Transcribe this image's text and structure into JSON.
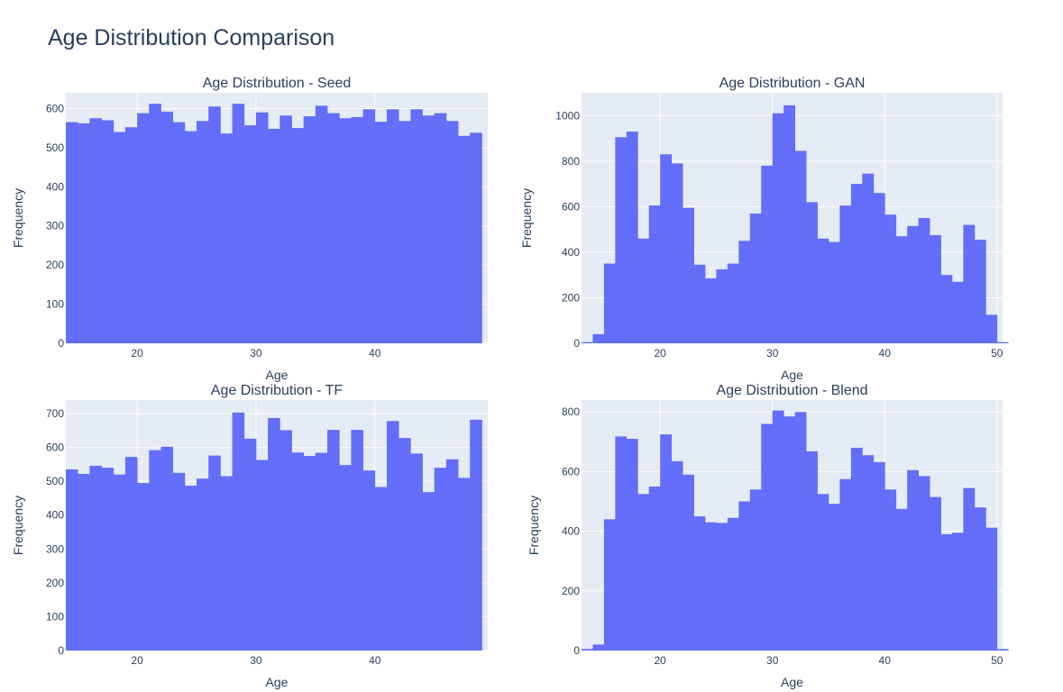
{
  "title": "Age Distribution Comparison",
  "colors": {
    "bar": "#636efa",
    "plot_bg": "#e5ecf6",
    "grid": "#ffffff",
    "text": "#2a3f5f"
  },
  "chart_data": [
    {
      "type": "bar",
      "title": "Age Distribution - Seed",
      "xlabel": "Age",
      "ylabel": "Frequency",
      "xlim": [
        14,
        49.5
      ],
      "ylim": [
        0,
        640
      ],
      "xticks": [
        20,
        30,
        40
      ],
      "yticks": [
        0,
        100,
        200,
        300,
        400,
        500,
        600
      ],
      "bin_start": 14,
      "bin_width": 1,
      "values": [
        565,
        562,
        575,
        570,
        540,
        552,
        588,
        612,
        592,
        565,
        542,
        568,
        605,
        536,
        612,
        557,
        590,
        548,
        582,
        550,
        580,
        607,
        588,
        575,
        578,
        598,
        566,
        598,
        568,
        598,
        582,
        588,
        568,
        530,
        538
      ]
    },
    {
      "type": "bar",
      "title": "Age Distribution - GAN",
      "xlabel": "Age",
      "ylabel": "Frequency",
      "xlim": [
        13,
        50.5
      ],
      "ylim": [
        0,
        1100
      ],
      "xticks": [
        20,
        30,
        40,
        50
      ],
      "yticks": [
        0,
        200,
        400,
        600,
        800,
        1000
      ],
      "bin_start": 13,
      "bin_width": 1,
      "values": [
        5,
        40,
        350,
        905,
        930,
        460,
        605,
        830,
        790,
        595,
        345,
        285,
        325,
        350,
        450,
        570,
        780,
        1010,
        1045,
        845,
        620,
        460,
        445,
        605,
        700,
        745,
        660,
        565,
        470,
        515,
        550,
        475,
        300,
        270,
        520,
        455,
        125,
        5
      ]
    },
    {
      "type": "bar",
      "title": "Age Distribution - TF",
      "xlabel": "Age",
      "ylabel": "Frequency",
      "xlim": [
        14,
        49.5
      ],
      "ylim": [
        0,
        740
      ],
      "xticks": [
        20,
        30,
        40
      ],
      "yticks": [
        0,
        100,
        200,
        300,
        400,
        500,
        600,
        700
      ],
      "bin_start": 14,
      "bin_width": 1,
      "values": [
        535,
        522,
        546,
        540,
        520,
        572,
        495,
        592,
        602,
        525,
        487,
        508,
        576,
        515,
        703,
        626,
        563,
        687,
        651,
        585,
        575,
        584,
        652,
        548,
        652,
        532,
        483,
        678,
        628,
        582,
        468,
        540,
        565,
        510,
        682
      ]
    },
    {
      "type": "bar",
      "title": "Age Distribution - Blend",
      "xlabel": "Age",
      "ylabel": "Frequency",
      "xlim": [
        13,
        50.5
      ],
      "ylim": [
        0,
        840
      ],
      "xticks": [
        20,
        30,
        40,
        50
      ],
      "yticks": [
        0,
        200,
        400,
        600,
        800
      ],
      "bin_start": 13,
      "bin_width": 1,
      "values": [
        5,
        20,
        440,
        718,
        710,
        525,
        550,
        725,
        635,
        590,
        450,
        430,
        428,
        445,
        500,
        540,
        760,
        805,
        785,
        800,
        668,
        525,
        492,
        575,
        680,
        655,
        632,
        540,
        475,
        605,
        585,
        515,
        390,
        395,
        545,
        480,
        412,
        5
      ]
    }
  ]
}
